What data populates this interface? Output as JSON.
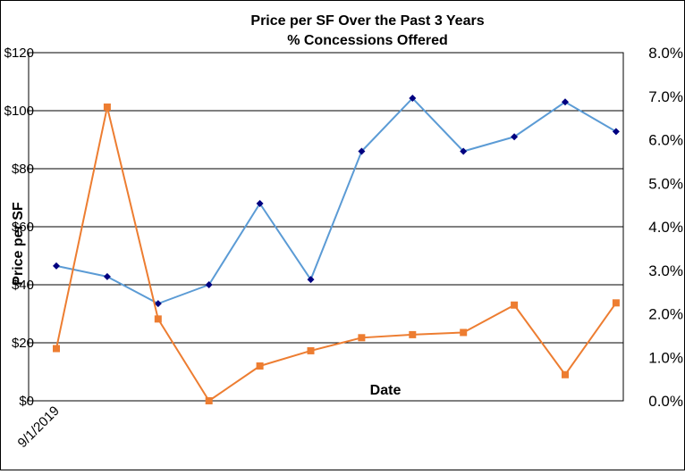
{
  "chart_data": {
    "type": "line",
    "title": [
      "Price per SF Over the Past 3 Years",
      "% Concessions Offered"
    ],
    "xlabel": "Date",
    "ylabel": "Price per SF",
    "x_tick_labels": [
      "9/1/2019"
    ],
    "y_left": {
      "ylim": [
        0,
        120
      ],
      "ticks": [
        0,
        20,
        40,
        60,
        80,
        100,
        120
      ],
      "tick_labels": [
        "$0",
        "$20",
        "$40",
        "$60",
        "$80",
        "$100",
        "$120"
      ]
    },
    "y_right": {
      "ylim": [
        0,
        8
      ],
      "ticks": [
        0,
        1,
        2,
        3,
        4,
        5,
        6,
        7,
        8
      ],
      "tick_labels": [
        "0.0%",
        "1.0%",
        "2.0%",
        "3.0%",
        "4.0%",
        "5.0%",
        "6.0%",
        "7.0%",
        "8.0%"
      ]
    },
    "grid": true,
    "series": [
      {
        "axis": "left",
        "color": "#5b9bd5",
        "marker": "diamond",
        "marker_color": "#000080",
        "values": [
          46.5,
          42.8,
          33.5,
          40.0,
          68.0,
          41.8,
          86.0,
          104.3,
          86.0,
          91.0,
          103.0,
          92.8
        ]
      },
      {
        "axis": "right",
        "color": "#ed7d31",
        "marker": "square",
        "marker_color": "#ed7d31",
        "values": [
          1.2,
          6.75,
          1.88,
          0.0,
          0.8,
          1.15,
          1.45,
          1.52,
          1.57,
          2.2,
          0.6,
          2.25
        ]
      }
    ]
  }
}
